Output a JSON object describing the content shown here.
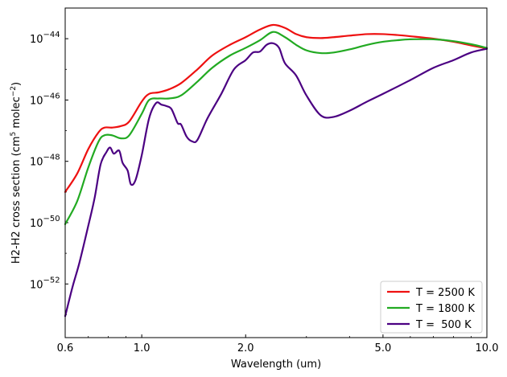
{
  "chart_data": {
    "type": "line",
    "xlabel": "Wavelength (um)",
    "ylabel_prefix": "H2-H2 cross section (cm",
    "ylabel_sup1": "5",
    "ylabel_mid": " molec",
    "ylabel_sup2": "−2",
    "ylabel_suffix": ")",
    "x_scale": "log",
    "y_scale": "log",
    "xlim": [
      0.6,
      10.0
    ],
    "ylim_log10": [
      -53.75,
      -43.0
    ],
    "grid": false,
    "legend_position": "lower-right",
    "x_ticks": [
      {
        "value": 0.6,
        "label": "0.6"
      },
      {
        "value": 1.0,
        "label": "1.0"
      },
      {
        "value": 2.0,
        "label": "2.0"
      },
      {
        "value": 5.0,
        "label": "5.0"
      },
      {
        "value": 10.0,
        "label": "10.0"
      }
    ],
    "y_ticks": [
      {
        "exp": -44,
        "base": "10",
        "label": "−44"
      },
      {
        "exp": -46,
        "base": "10",
        "label": "−46"
      },
      {
        "exp": -48,
        "base": "10",
        "label": "−48"
      },
      {
        "exp": -50,
        "base": "10",
        "label": "−50"
      },
      {
        "exp": -52,
        "base": "10",
        "label": "−52"
      }
    ],
    "series": [
      {
        "name": "T = 2500 K",
        "color": "#ee1111",
        "x": [
          0.6,
          0.65,
          0.7,
          0.75,
          0.78,
          0.82,
          0.87,
          0.92,
          1.0,
          1.05,
          1.12,
          1.2,
          1.3,
          1.45,
          1.6,
          1.8,
          2.0,
          2.2,
          2.4,
          2.6,
          2.8,
          3.0,
          3.3,
          3.6,
          4.0,
          4.5,
          5.0,
          5.5,
          6.0,
          7.0,
          8.0,
          9.0,
          10.0
        ],
        "log10_y": [
          -49.0,
          -48.4,
          -47.6,
          -47.05,
          -46.9,
          -46.9,
          -46.85,
          -46.7,
          -46.05,
          -45.8,
          -45.75,
          -45.65,
          -45.45,
          -45.0,
          -44.55,
          -44.2,
          -43.95,
          -43.7,
          -43.55,
          -43.65,
          -43.85,
          -43.95,
          -43.98,
          -43.95,
          -43.9,
          -43.85,
          -43.85,
          -43.88,
          -43.92,
          -44.0,
          -44.1,
          -44.22,
          -44.32
        ]
      },
      {
        "name": "T = 1800 K",
        "color": "#22aa22",
        "x": [
          0.6,
          0.65,
          0.7,
          0.75,
          0.78,
          0.82,
          0.87,
          0.92,
          1.0,
          1.05,
          1.12,
          1.2,
          1.3,
          1.45,
          1.6,
          1.8,
          2.0,
          2.2,
          2.4,
          2.6,
          2.8,
          3.0,
          3.3,
          3.6,
          4.0,
          4.5,
          5.0,
          5.5,
          6.0,
          7.0,
          8.0,
          9.0,
          10.0
        ],
        "log10_y": [
          -50.05,
          -49.3,
          -48.2,
          -47.35,
          -47.15,
          -47.15,
          -47.25,
          -47.15,
          -46.45,
          -46.0,
          -45.95,
          -45.95,
          -45.85,
          -45.4,
          -44.95,
          -44.55,
          -44.3,
          -44.05,
          -43.78,
          -43.95,
          -44.2,
          -44.38,
          -44.47,
          -44.45,
          -44.35,
          -44.2,
          -44.1,
          -44.05,
          -44.02,
          -44.02,
          -44.08,
          -44.18,
          -44.3
        ]
      },
      {
        "name": "T =  500 K",
        "color": "#4b0082",
        "x": [
          0.6,
          0.63,
          0.66,
          0.7,
          0.73,
          0.76,
          0.79,
          0.81,
          0.83,
          0.86,
          0.88,
          0.91,
          0.93,
          0.96,
          1.0,
          1.05,
          1.1,
          1.14,
          1.18,
          1.22,
          1.27,
          1.3,
          1.35,
          1.4,
          1.45,
          1.55,
          1.7,
          1.85,
          2.0,
          2.1,
          2.2,
          2.3,
          2.4,
          2.5,
          2.6,
          2.8,
          3.0,
          3.3,
          3.6,
          4.0,
          4.5,
          5.0,
          6.0,
          7.0,
          8.0,
          9.0,
          10.0
        ],
        "log10_y": [
          -53.05,
          -52.1,
          -51.3,
          -50.1,
          -49.2,
          -48.1,
          -47.7,
          -47.55,
          -47.75,
          -47.65,
          -48.05,
          -48.3,
          -48.75,
          -48.6,
          -47.8,
          -46.6,
          -46.1,
          -46.15,
          -46.2,
          -46.3,
          -46.75,
          -46.8,
          -47.2,
          -47.35,
          -47.3,
          -46.6,
          -45.8,
          -45.0,
          -44.7,
          -44.45,
          -44.42,
          -44.2,
          -44.15,
          -44.3,
          -44.8,
          -45.2,
          -45.85,
          -46.5,
          -46.55,
          -46.35,
          -46.05,
          -45.8,
          -45.35,
          -44.95,
          -44.7,
          -44.45,
          -44.33
        ]
      }
    ]
  }
}
